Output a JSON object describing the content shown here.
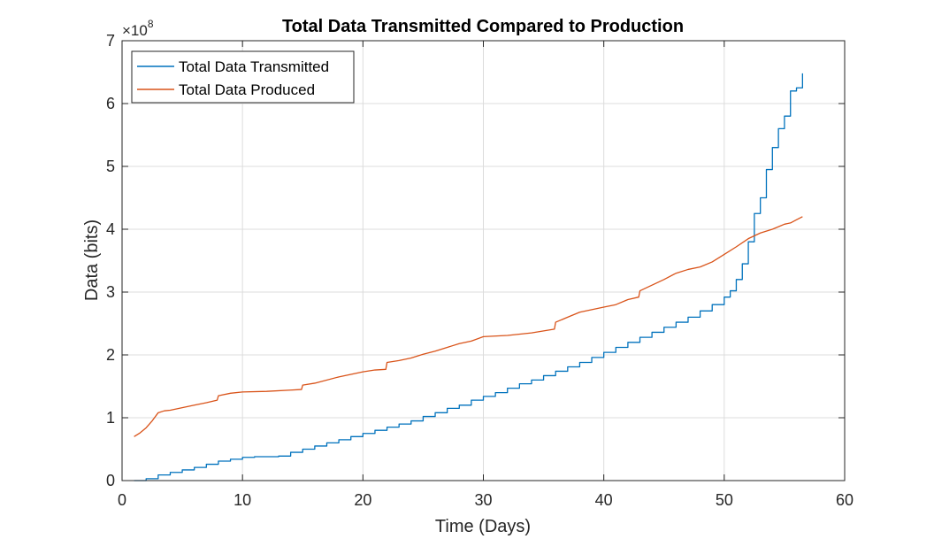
{
  "chart_data": {
    "type": "line",
    "title": "Total Data Transmitted Compared to Production",
    "xlabel": "Time (Days)",
    "ylabel": "Data (bits)",
    "y_exponent_label": "×10",
    "y_exponent_power": "8",
    "xlim": [
      0,
      60
    ],
    "ylim": [
      0,
      7
    ],
    "xticks": [
      0,
      10,
      20,
      30,
      40,
      50,
      60
    ],
    "yticks": [
      0,
      1,
      2,
      3,
      4,
      5,
      6,
      7
    ],
    "xtick_labels": [
      "0",
      "10",
      "20",
      "30",
      "40",
      "50",
      "60"
    ],
    "ytick_labels": [
      "0",
      "1",
      "2",
      "3",
      "4",
      "5",
      "6",
      "7"
    ],
    "grid": true,
    "legend_position": "top-left",
    "series": [
      {
        "name": "Total Data Transmitted",
        "color": "#0072BD",
        "step": true,
        "x": [
          1,
          2,
          3,
          4,
          5,
          6,
          7,
          8,
          9,
          10,
          11,
          12,
          13,
          14,
          15,
          16,
          17,
          18,
          19,
          20,
          21,
          22,
          23,
          24,
          25,
          26,
          27,
          28,
          29,
          30,
          31,
          32,
          33,
          34,
          35,
          36,
          37,
          38,
          39,
          40,
          41,
          42,
          43,
          44,
          45,
          46,
          47,
          48,
          49,
          50,
          50.5,
          51,
          51.5,
          52,
          52.5,
          53,
          53.5,
          54,
          54.5,
          55,
          55.5,
          56,
          56.5
        ],
        "y": [
          0,
          0.03,
          0.09,
          0.13,
          0.17,
          0.21,
          0.26,
          0.31,
          0.34,
          0.37,
          0.38,
          0.38,
          0.39,
          0.45,
          0.5,
          0.55,
          0.6,
          0.65,
          0.7,
          0.75,
          0.8,
          0.85,
          0.9,
          0.95,
          1.02,
          1.08,
          1.15,
          1.2,
          1.28,
          1.34,
          1.4,
          1.47,
          1.54,
          1.6,
          1.67,
          1.74,
          1.81,
          1.88,
          1.96,
          2.04,
          2.12,
          2.2,
          2.28,
          2.36,
          2.44,
          2.52,
          2.6,
          2.7,
          2.8,
          2.92,
          3.02,
          3.2,
          3.45,
          3.8,
          4.25,
          4.5,
          4.95,
          5.3,
          5.6,
          5.8,
          6.2,
          6.25,
          6.48
        ]
      },
      {
        "name": "Total Data Produced",
        "color": "#D95319",
        "step": false,
        "x": [
          1,
          1.5,
          2,
          2.5,
          3,
          3.5,
          4,
          5,
          6,
          7,
          7.9,
          8,
          9,
          10,
          12,
          14,
          14.9,
          15,
          16,
          18,
          20,
          21,
          21.9,
          22,
          23,
          24,
          25,
          26,
          27,
          28,
          29,
          30,
          32,
          34,
          35.9,
          36,
          37,
          38,
          39,
          40,
          41,
          42,
          42.9,
          43,
          44,
          45,
          46,
          47,
          48,
          49,
          50,
          51,
          52,
          53,
          54,
          55,
          55.5,
          56,
          56.5
        ],
        "y": [
          0.7,
          0.76,
          0.84,
          0.95,
          1.08,
          1.11,
          1.12,
          1.16,
          1.2,
          1.24,
          1.28,
          1.35,
          1.39,
          1.41,
          1.42,
          1.44,
          1.45,
          1.52,
          1.55,
          1.65,
          1.73,
          1.76,
          1.77,
          1.88,
          1.91,
          1.95,
          2.01,
          2.06,
          2.12,
          2.18,
          2.22,
          2.29,
          2.31,
          2.35,
          2.41,
          2.52,
          2.6,
          2.68,
          2.72,
          2.76,
          2.8,
          2.88,
          2.92,
          3.02,
          3.11,
          3.2,
          3.3,
          3.36,
          3.4,
          3.48,
          3.6,
          3.72,
          3.85,
          3.94,
          4.0,
          4.08,
          4.1,
          4.15,
          4.2
        ]
      }
    ]
  }
}
